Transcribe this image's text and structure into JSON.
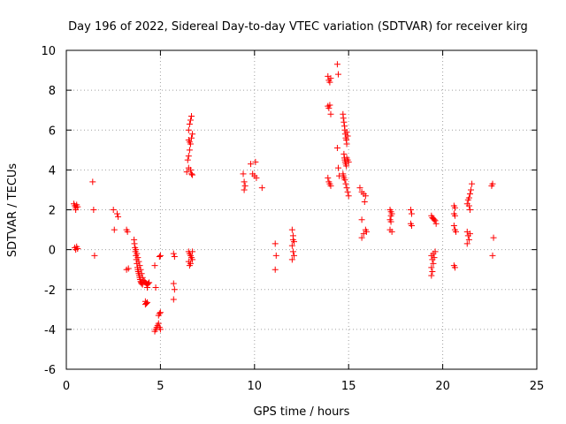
{
  "chart_data": {
    "type": "scatter",
    "title": "Day 196 of 2022, Sidereal Day-to-day VTEC variation (SDTVAR) for receiver kirg",
    "xlabel": "GPS time / hours",
    "ylabel": "SDTVAR / TECUs",
    "xlim": [
      0,
      25
    ],
    "ylim": [
      -6,
      10
    ],
    "xticks": [
      0,
      5,
      10,
      15,
      20,
      25
    ],
    "yticks": [
      -6,
      -4,
      -2,
      0,
      2,
      4,
      6,
      8,
      10
    ],
    "grid": true,
    "legend": "none",
    "marker": "plus",
    "color": "#ff0000",
    "series": [
      {
        "name": "SDTVAR",
        "points": [
          [
            0.4,
            2.3
          ],
          [
            0.45,
            2.2
          ],
          [
            0.5,
            2.1
          ],
          [
            0.55,
            2.25
          ],
          [
            0.6,
            2.15
          ],
          [
            0.5,
            2.0
          ],
          [
            0.45,
            0.1
          ],
          [
            0.5,
            0.0
          ],
          [
            0.55,
            0.15
          ],
          [
            0.6,
            0.05
          ],
          [
            1.4,
            3.4
          ],
          [
            1.45,
            2.0
          ],
          [
            1.5,
            -0.3
          ],
          [
            2.5,
            2.0
          ],
          [
            2.55,
            1.0
          ],
          [
            2.7,
            1.8
          ],
          [
            2.75,
            1.65
          ],
          [
            3.2,
            1.0
          ],
          [
            3.25,
            0.9
          ],
          [
            3.2,
            -1.0
          ],
          [
            3.3,
            -0.95
          ],
          [
            3.6,
            0.5
          ],
          [
            3.62,
            0.3
          ],
          [
            3.65,
            0.1
          ],
          [
            3.67,
            -0.1
          ],
          [
            3.7,
            -0.3
          ],
          [
            3.72,
            -0.5
          ],
          [
            3.75,
            -0.7
          ],
          [
            3.78,
            -0.9
          ],
          [
            3.8,
            -1.0
          ],
          [
            3.82,
            -1.1
          ],
          [
            3.85,
            -1.2
          ],
          [
            3.88,
            -1.3
          ],
          [
            3.9,
            -1.4
          ],
          [
            3.92,
            -1.5
          ],
          [
            3.95,
            -1.6
          ],
          [
            3.98,
            -1.65
          ],
          [
            4.0,
            -1.7
          ],
          [
            4.05,
            -1.75
          ],
          [
            3.7,
            0.0
          ],
          [
            3.75,
            -0.2
          ],
          [
            3.8,
            -0.4
          ],
          [
            3.85,
            -0.6
          ],
          [
            3.9,
            -0.8
          ],
          [
            3.95,
            -1.0
          ],
          [
            4.0,
            -1.2
          ],
          [
            4.05,
            -1.4
          ],
          [
            4.1,
            -1.55
          ],
          [
            4.15,
            -1.6
          ],
          [
            4.2,
            -1.65
          ],
          [
            4.25,
            -1.7
          ],
          [
            4.3,
            -1.75
          ],
          [
            4.35,
            -1.7
          ],
          [
            4.4,
            -1.65
          ],
          [
            4.3,
            -1.9
          ],
          [
            4.2,
            -2.6
          ],
          [
            4.25,
            -2.7
          ],
          [
            4.3,
            -2.65
          ],
          [
            4.2,
            -2.75
          ],
          [
            4.7,
            -0.8
          ],
          [
            4.75,
            -1.9
          ],
          [
            4.7,
            -4.1
          ],
          [
            4.75,
            -4.0
          ],
          [
            4.8,
            -3.9
          ],
          [
            4.85,
            -3.8
          ],
          [
            4.9,
            -3.7
          ],
          [
            4.95,
            -3.9
          ],
          [
            5.0,
            -4.0
          ],
          [
            4.9,
            -3.3
          ],
          [
            4.95,
            -3.2
          ],
          [
            5.0,
            -3.15
          ],
          [
            5.0,
            -0.3
          ],
          [
            4.95,
            -0.35
          ],
          [
            5.7,
            -0.2
          ],
          [
            5.75,
            -0.35
          ],
          [
            5.7,
            -1.7
          ],
          [
            5.75,
            -2.0
          ],
          [
            5.7,
            -2.5
          ],
          [
            6.4,
            3.9
          ],
          [
            6.45,
            4.5
          ],
          [
            6.5,
            4.7
          ],
          [
            6.55,
            5.0
          ],
          [
            6.6,
            5.3
          ],
          [
            6.65,
            5.6
          ],
          [
            6.7,
            5.8
          ],
          [
            6.5,
            6.0
          ],
          [
            6.55,
            6.3
          ],
          [
            6.6,
            6.5
          ],
          [
            6.65,
            6.7
          ],
          [
            6.5,
            5.5
          ],
          [
            6.55,
            5.4
          ],
          [
            6.6,
            4.0
          ],
          [
            6.65,
            3.8
          ],
          [
            6.7,
            3.75
          ],
          [
            6.5,
            4.1
          ],
          [
            6.5,
            -0.1
          ],
          [
            6.55,
            -0.2
          ],
          [
            6.6,
            -0.3
          ],
          [
            6.65,
            -0.4
          ],
          [
            6.7,
            -0.5
          ],
          [
            6.5,
            -0.6
          ],
          [
            6.55,
            -0.8
          ],
          [
            6.6,
            -0.7
          ],
          [
            6.7,
            -0.1
          ],
          [
            9.4,
            3.8
          ],
          [
            9.45,
            3.4
          ],
          [
            9.5,
            3.2
          ],
          [
            9.45,
            3.0
          ],
          [
            9.8,
            4.3
          ],
          [
            9.9,
            3.8
          ],
          [
            10.0,
            3.7
          ],
          [
            10.05,
            4.4
          ],
          [
            10.1,
            3.6
          ],
          [
            10.4,
            3.1
          ],
          [
            11.1,
            0.3
          ],
          [
            11.15,
            -0.3
          ],
          [
            11.1,
            -1.0
          ],
          [
            12.0,
            1.0
          ],
          [
            12.05,
            0.7
          ],
          [
            12.1,
            0.4
          ],
          [
            12.0,
            0.2
          ],
          [
            12.05,
            -0.1
          ],
          [
            12.1,
            -0.3
          ],
          [
            12.0,
            -0.5
          ],
          [
            12.05,
            0.5
          ],
          [
            13.9,
            8.7
          ],
          [
            13.95,
            8.5
          ],
          [
            14.0,
            8.4
          ],
          [
            14.05,
            8.6
          ],
          [
            13.9,
            7.2
          ],
          [
            13.95,
            7.1
          ],
          [
            14.0,
            7.25
          ],
          [
            14.05,
            6.8
          ],
          [
            13.9,
            3.6
          ],
          [
            13.95,
            3.4
          ],
          [
            14.0,
            3.3
          ],
          [
            14.05,
            3.2
          ],
          [
            14.4,
            9.3
          ],
          [
            14.45,
            8.8
          ],
          [
            14.4,
            5.1
          ],
          [
            14.45,
            4.1
          ],
          [
            14.5,
            3.7
          ],
          [
            14.7,
            6.8
          ],
          [
            14.72,
            6.6
          ],
          [
            14.75,
            6.4
          ],
          [
            14.78,
            6.2
          ],
          [
            14.8,
            6.0
          ],
          [
            14.82,
            5.8
          ],
          [
            14.85,
            5.6
          ],
          [
            14.88,
            5.5
          ],
          [
            14.9,
            5.3
          ],
          [
            14.75,
            4.8
          ],
          [
            14.78,
            4.6
          ],
          [
            14.8,
            4.5
          ],
          [
            14.82,
            4.4
          ],
          [
            14.85,
            4.3
          ],
          [
            14.88,
            4.2
          ],
          [
            14.9,
            4.6
          ],
          [
            14.95,
            4.5
          ],
          [
            15.0,
            4.4
          ],
          [
            14.7,
            3.8
          ],
          [
            14.72,
            3.7
          ],
          [
            14.75,
            3.6
          ],
          [
            14.8,
            3.5
          ],
          [
            14.85,
            3.3
          ],
          [
            14.9,
            3.1
          ],
          [
            14.95,
            2.9
          ],
          [
            15.0,
            2.7
          ],
          [
            14.9,
            5.9
          ],
          [
            14.95,
            5.7
          ],
          [
            15.6,
            3.1
          ],
          [
            15.7,
            2.9
          ],
          [
            15.8,
            2.8
          ],
          [
            15.9,
            2.7
          ],
          [
            15.85,
            2.4
          ],
          [
            15.7,
            1.5
          ],
          [
            15.8,
            0.8
          ],
          [
            15.9,
            1.0
          ],
          [
            15.95,
            0.9
          ],
          [
            15.7,
            0.6
          ],
          [
            17.2,
            2.0
          ],
          [
            17.25,
            1.9
          ],
          [
            17.3,
            1.8
          ],
          [
            17.2,
            1.5
          ],
          [
            17.25,
            1.4
          ],
          [
            17.2,
            1.0
          ],
          [
            17.3,
            0.9
          ],
          [
            17.25,
            1.7
          ],
          [
            18.3,
            2.0
          ],
          [
            18.35,
            1.8
          ],
          [
            18.3,
            1.3
          ],
          [
            18.35,
            1.2
          ],
          [
            19.4,
            1.7
          ],
          [
            19.45,
            1.6
          ],
          [
            19.5,
            1.55
          ],
          [
            19.55,
            1.5
          ],
          [
            19.6,
            1.45
          ],
          [
            19.65,
            1.3
          ],
          [
            19.4,
            -0.3
          ],
          [
            19.45,
            -0.5
          ],
          [
            19.5,
            -0.7
          ],
          [
            19.4,
            -0.9
          ],
          [
            19.45,
            -1.1
          ],
          [
            19.4,
            -1.3
          ],
          [
            19.5,
            -0.2
          ],
          [
            19.55,
            -0.4
          ],
          [
            19.6,
            -0.1
          ],
          [
            20.6,
            2.2
          ],
          [
            20.65,
            2.1
          ],
          [
            20.6,
            1.8
          ],
          [
            20.65,
            1.7
          ],
          [
            20.6,
            1.2
          ],
          [
            20.65,
            1.0
          ],
          [
            20.7,
            0.9
          ],
          [
            20.6,
            -0.8
          ],
          [
            20.65,
            -0.9
          ],
          [
            21.3,
            2.3
          ],
          [
            21.35,
            2.5
          ],
          [
            21.4,
            2.6
          ],
          [
            21.45,
            2.8
          ],
          [
            21.5,
            3.0
          ],
          [
            21.55,
            3.3
          ],
          [
            21.4,
            2.2
          ],
          [
            21.45,
            2.0
          ],
          [
            21.3,
            0.9
          ],
          [
            21.35,
            0.7
          ],
          [
            21.4,
            0.5
          ],
          [
            21.45,
            0.8
          ],
          [
            21.3,
            0.3
          ],
          [
            22.6,
            3.2
          ],
          [
            22.65,
            3.3
          ],
          [
            22.7,
            0.6
          ],
          [
            22.65,
            -0.3
          ]
        ]
      }
    ]
  }
}
